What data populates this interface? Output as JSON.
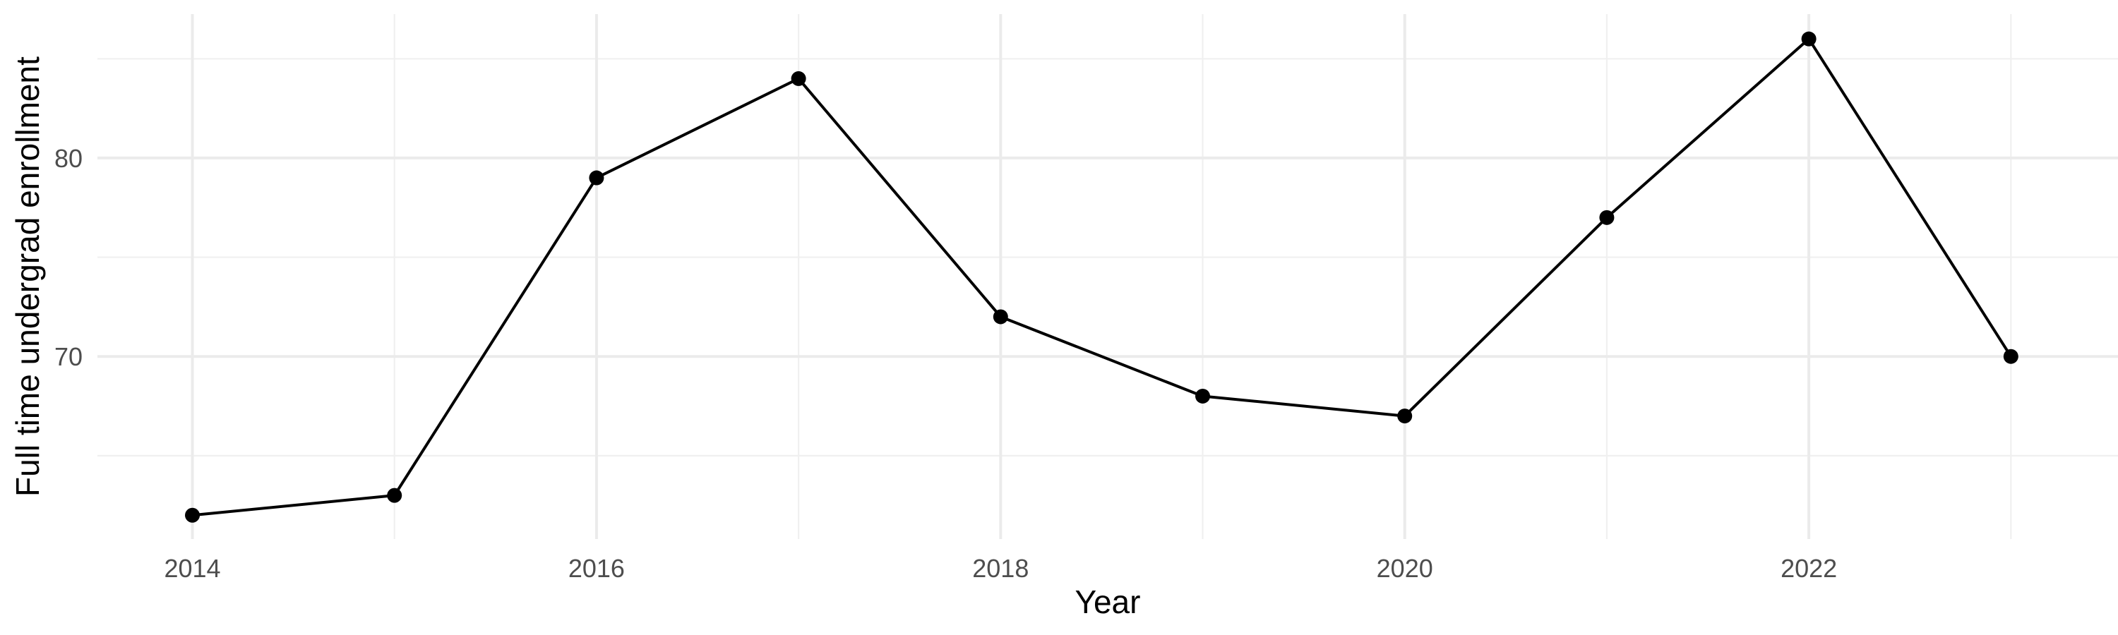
{
  "figure": {
    "background": "#FFFFFF"
  },
  "chart_data": {
    "type": "line",
    "x": [
      2014,
      2015,
      2016,
      2017,
      2018,
      2019,
      2020,
      2021,
      2022,
      2023
    ],
    "values": [
      62,
      63,
      79,
      84,
      72,
      68,
      67,
      77,
      86,
      70
    ],
    "title": "",
    "xlabel": "Year",
    "ylabel": "Full time undergrad enrollment",
    "xlim": [
      2013.53,
      2023.53
    ],
    "ylim": [
      60.8,
      87.25
    ],
    "x_major_ticks": [
      2014,
      2016,
      2018,
      2020,
      2022
    ],
    "x_minor_ticks": [
      2015,
      2017,
      2019,
      2021,
      2023
    ],
    "y_major_ticks": [
      70,
      80
    ],
    "y_minor_ticks": [
      65,
      75,
      85
    ],
    "grid": "major+minor",
    "legend": "none",
    "style": {
      "line_color": "#000000",
      "point_color": "#000000",
      "point_radius": 10.5,
      "line_width": 4,
      "grid_major_color": "#EBEBEB",
      "grid_minor_color": "#F0F0F0",
      "grid_major_width": 4,
      "grid_minor_width": 2.2,
      "axis_text_color": "#4D4D4D",
      "axis_text_size": 36,
      "axis_title_color": "#000000",
      "axis_title_size": 46,
      "background": "#FFFFFF"
    }
  }
}
